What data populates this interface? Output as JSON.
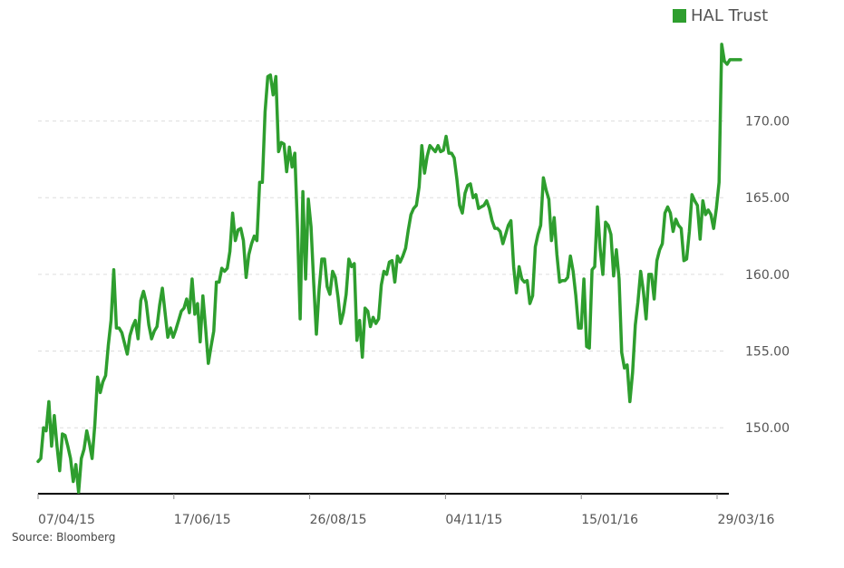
{
  "legend": {
    "label": "HAL Trust",
    "color": "#2e9e2e"
  },
  "source": "Source: Bloomberg",
  "colors": {
    "line": "#2e9e2e",
    "grid": "#dddddd",
    "axis": "#000000",
    "text": "#555555"
  },
  "chart_data": {
    "type": "line",
    "title": "",
    "xlabel": "",
    "ylabel": "",
    "ylim": [
      145.7,
      176.0
    ],
    "grid": true,
    "legend_position": "top-right",
    "x_tick_labels": [
      "07/04/15",
      "17/06/15",
      "26/08/15",
      "04/11/15",
      "15/01/16",
      "29/03/16"
    ],
    "y_tick_values": [
      150,
      155,
      160,
      165,
      170
    ],
    "y_tick_labels": [
      "150.00",
      "155.00",
      "160.00",
      "165.00",
      "170.00"
    ],
    "series": [
      {
        "name": "HAL Trust",
        "values": [
          147.8,
          148.0,
          150.0,
          149.8,
          151.7,
          148.8,
          150.8,
          148.8,
          147.2,
          149.6,
          149.5,
          148.8,
          148.0,
          146.5,
          147.6,
          145.8,
          148.0,
          148.6,
          149.8,
          149.0,
          148.0,
          150.2,
          153.3,
          152.3,
          153.0,
          153.4,
          155.4,
          157.0,
          160.3,
          156.5,
          156.5,
          156.2,
          155.5,
          154.8,
          156.0,
          156.6,
          157.0,
          155.8,
          158.3,
          158.9,
          158.2,
          156.7,
          155.8,
          156.3,
          156.6,
          158.0,
          159.1,
          157.5,
          155.9,
          156.5,
          155.9,
          156.4,
          157.0,
          157.6,
          157.8,
          158.4,
          157.5,
          159.7,
          157.4,
          158.1,
          155.6,
          158.6,
          156.5,
          154.2,
          155.3,
          156.3,
          159.5,
          159.5,
          160.4,
          160.2,
          160.4,
          161.5,
          164.0,
          162.2,
          162.9,
          163.0,
          162.2,
          159.8,
          161.3,
          162.0,
          162.5,
          162.2,
          166.0,
          166.0,
          170.6,
          172.9,
          173.0,
          171.7,
          172.9,
          168.0,
          168.6,
          168.5,
          166.7,
          168.3,
          167.0,
          167.9,
          163.0,
          157.1,
          165.4,
          159.7,
          164.9,
          163.1,
          159.5,
          156.1,
          159.0,
          161.0,
          161.0,
          159.2,
          158.7,
          160.2,
          159.8,
          158.5,
          156.8,
          157.5,
          158.7,
          161.0,
          160.5,
          160.7,
          155.7,
          157.0,
          154.6,
          157.8,
          157.6,
          156.6,
          157.2,
          156.8,
          157.1,
          159.3,
          160.2,
          160.0,
          160.8,
          160.9,
          159.5,
          161.2,
          160.8,
          161.2,
          161.7,
          162.9,
          163.9,
          164.3,
          164.5,
          165.7,
          168.4,
          166.6,
          167.7,
          168.4,
          168.2,
          168.0,
          168.4,
          168.0,
          168.1,
          169.0,
          167.9,
          167.9,
          167.6,
          166.2,
          164.5,
          164.0,
          165.3,
          165.8,
          165.9,
          165.0,
          165.2,
          164.3,
          164.4,
          164.5,
          164.8,
          164.3,
          163.5,
          163.0,
          163.0,
          162.8,
          162.0,
          162.6,
          163.2,
          163.5,
          160.5,
          158.8,
          160.5,
          159.7,
          159.5,
          159.6,
          158.1,
          158.6,
          161.8,
          162.6,
          163.2,
          166.3,
          165.5,
          164.9,
          162.2,
          163.7,
          161.3,
          159.5,
          159.6,
          159.6,
          159.8,
          161.2,
          160.2,
          158.6,
          156.5,
          156.5,
          159.7,
          155.3,
          155.2,
          160.3,
          160.5,
          164.4,
          161.7,
          160.0,
          163.4,
          163.2,
          162.6,
          159.9,
          161.6,
          159.7,
          154.9,
          153.9,
          154.1,
          151.7,
          153.6,
          156.7,
          158.2,
          160.2,
          158.9,
          157.1,
          160.0,
          160.0,
          158.4,
          160.9,
          161.6,
          162.0,
          164.0,
          164.4,
          164.0,
          162.8,
          163.6,
          163.2,
          163.0,
          160.9,
          161.0,
          162.8,
          165.2,
          164.8,
          164.5,
          162.3,
          164.8,
          163.9,
          164.2,
          163.9,
          163.0,
          164.3,
          166.0,
          175.0,
          173.9,
          173.7,
          174.0,
          174.0,
          174.0,
          174.0,
          174.0
        ]
      }
    ]
  }
}
